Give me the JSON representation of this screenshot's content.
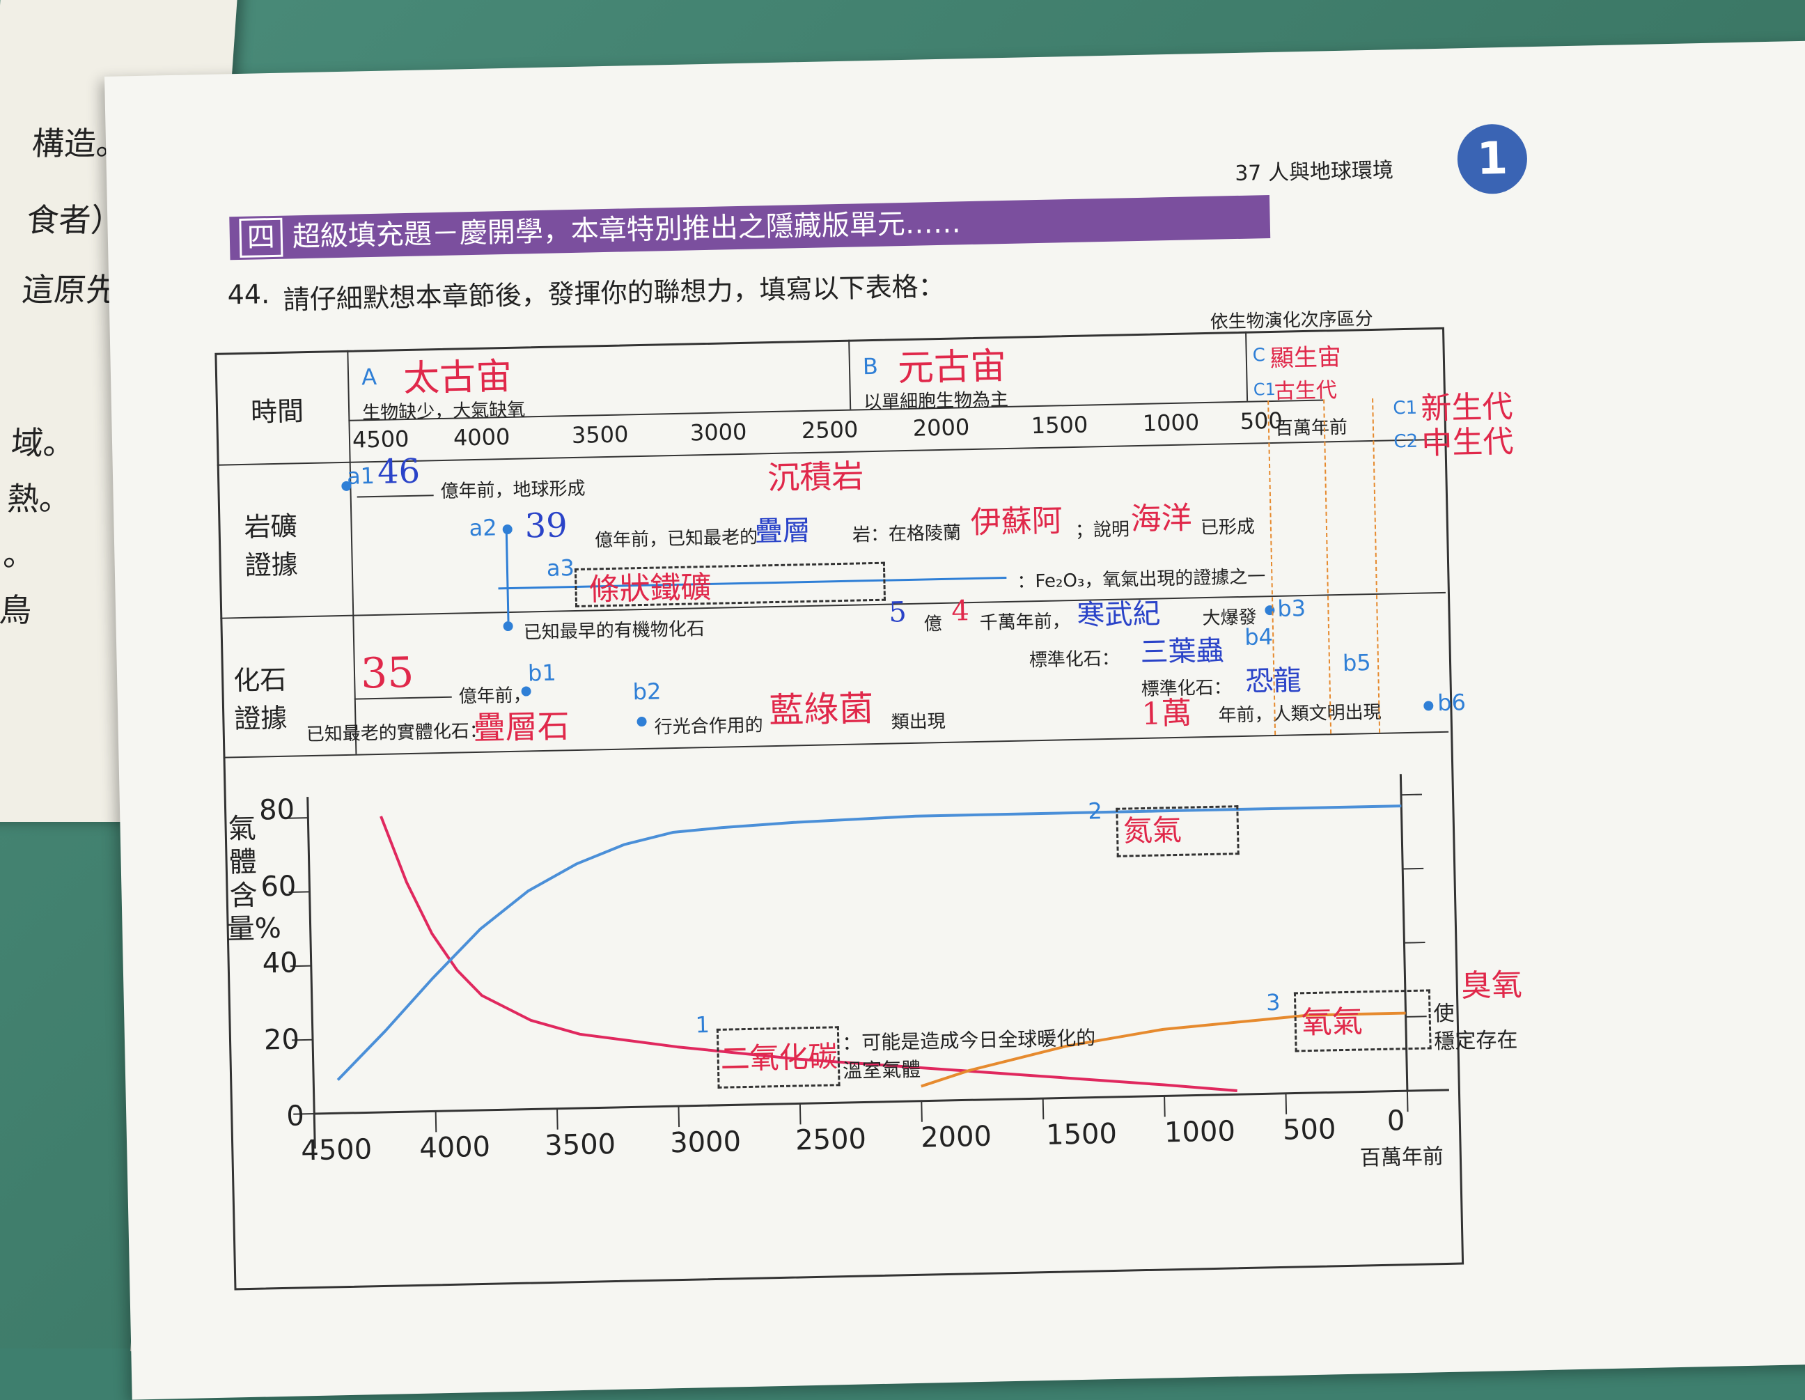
{
  "left_page": {
    "lines": [
      "構造。",
      "食者）比",
      "這原先是",
      "域。",
      "熱。",
      "。",
      "鳥"
    ]
  },
  "header": {
    "page_title": "37 人與地球環境",
    "chapter_badge": "1"
  },
  "section": {
    "box": "四",
    "title": "超級填充題－慶開學，本章特別推出之隱藏版單元……"
  },
  "question": {
    "number": "44.",
    "text": "請仔細默想本章節後，發揮你的聯想力，填寫以下表格："
  },
  "table": {
    "note": "依生物演化次序區分",
    "row_time": "時間",
    "row_rock": "岩礦證據",
    "row_fossil": "化石證據",
    "eras": [
      {
        "key": "A",
        "answer": "太古宙",
        "desc": "生物缺少，大氣缺氧"
      },
      {
        "key": "B",
        "answer": "元古宙",
        "desc": "以單細胞生物為主"
      },
      {
        "key": "C",
        "answer": "顯生宙"
      },
      {
        "key": "C1",
        "answer": "古生代"
      }
    ],
    "side_answers": [
      {
        "key": "C1",
        "answer": "新生代"
      },
      {
        "key": "C2",
        "answer": "中生代"
      }
    ],
    "time_ticks": [
      "4500",
      "4000",
      "3500",
      "3000",
      "2500",
      "2000",
      "1500",
      "1000",
      "500"
    ],
    "time_unit": "百萬年前",
    "rock": {
      "a1": {
        "key": "a1",
        "answer": "46",
        "text": "億年前，地球形成"
      },
      "a2": {
        "key": "a2",
        "answer": "39",
        "text1": "億年前，已知最老的",
        "answer2": "疊層",
        "text2": "岩：在格陵蘭",
        "answer3": "伊蘇阿",
        "text3": "；說明",
        "answer4": "海洋",
        "text4": "已形成",
        "note": "沉積岩"
      },
      "a3": {
        "key": "a3",
        "answer": "條狀鐵礦",
        "text": "：Fe₂O₃，氧氣出現的證據之一"
      }
    },
    "fossil": {
      "organic": "已知最早的有機物化石",
      "b1": {
        "key": "b1",
        "answer": "35",
        "text": "億年前，",
        "label": "已知最老的實體化石：",
        "answer2": "疊層石"
      },
      "b2": {
        "key": "b2",
        "text": "行光合作用的",
        "answer": "藍綠菌",
        "text2": "類出現"
      },
      "b3": {
        "key": "b3",
        "answer1": "5",
        "answer2": "4",
        "text1": "億",
        "text2": "千萬年前，",
        "answer3": "寒武紀",
        "text3": "大爆發"
      },
      "b4": {
        "key": "b4",
        "label": "標準化石：",
        "answer": "三葉蟲"
      },
      "b5": {
        "key": "b5",
        "label": "標準化石：",
        "answer": "恐龍"
      },
      "b6": {
        "key": "b6",
        "answer": "1萬",
        "text": "年前，人類文明出現"
      }
    }
  },
  "chart_data": {
    "type": "line",
    "ylabel": "氣體含量%",
    "xlabel": "百萬年前",
    "ylim": [
      0,
      80
    ],
    "xlim": [
      4500,
      0
    ],
    "y_ticks": [
      "0",
      "20",
      "40",
      "60",
      "80"
    ],
    "x_ticks": [
      "4500",
      "4000",
      "3500",
      "3000",
      "2500",
      "2000",
      "1500",
      "1000",
      "500",
      "0"
    ],
    "series": [
      {
        "key": "1",
        "answer": "二氧化碳",
        "text": "：可能是造成今日全球暖化的溫室氣體",
        "color": "#e0285e",
        "x": [
          4200,
          4100,
          4000,
          3900,
          3800,
          3600,
          3400,
          3000,
          2500,
          2000,
          1500,
          1000,
          700
        ],
        "y": [
          80,
          62,
          48,
          38,
          31,
          24,
          20,
          16,
          12,
          9,
          6,
          3,
          1
        ]
      },
      {
        "key": "2",
        "answer": "氮氣",
        "color": "#4a8fd8",
        "x": [
          4400,
          4200,
          4000,
          3800,
          3600,
          3400,
          3200,
          3000,
          2800,
          2500,
          2000,
          1500,
          1000,
          500,
          0
        ],
        "y": [
          9,
          22,
          36,
          49,
          59,
          66,
          71,
          74,
          75,
          76,
          77,
          77,
          77,
          77,
          77
        ]
      },
      {
        "key": "3",
        "answer": "氧氣",
        "text1": "使",
        "answer2": "臭氧",
        "text2": "穩定存在",
        "color": "#e68a2e",
        "x": [
          2000,
          1800,
          1600,
          1400,
          1200,
          1000,
          800,
          600,
          400,
          200,
          0
        ],
        "y": [
          4,
          8,
          11,
          14,
          16,
          18,
          19,
          20,
          21,
          21,
          21
        ]
      }
    ]
  }
}
